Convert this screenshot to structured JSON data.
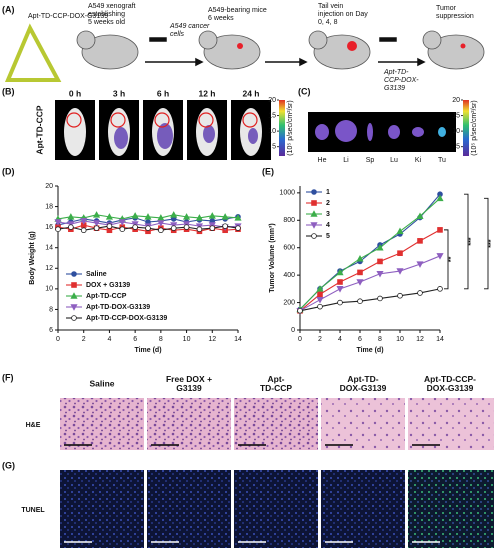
{
  "panels": [
    "(A)",
    "(B)",
    "(C)",
    "(D)",
    "(E)",
    "(F)",
    "(G)"
  ],
  "scheme": {
    "structure_label": "Apt-TD-CCP-DOX-G3139",
    "steps": [
      [
        "A549 xenograft",
        "establishing",
        "5 weeks old"
      ],
      [
        "A549 cancer",
        "cells"
      ],
      [
        "A549-bearing mice",
        "6 weeks"
      ],
      [
        "Tail vein",
        "injection on Day",
        "0, 4, 8"
      ],
      [
        "Apt-TD-",
        "CCP-DOX-",
        "G3139"
      ],
      [
        "Tumor",
        "suppression"
      ]
    ]
  },
  "imaging": {
    "row_label": "Apt-TD-CCP",
    "times": [
      "0 h",
      "3 h",
      "6 h",
      "12 h",
      "24 h"
    ],
    "organs": [
      "He",
      "Li",
      "Sp",
      "Lu",
      "Ki",
      "Tu"
    ],
    "colorbar": {
      "label": "(10⁵ p/sec/cm²/sr)",
      "lim": [
        2,
        20
      ],
      "ticks": [
        20,
        15,
        10,
        5
      ]
    }
  },
  "chart_data": [
    {
      "type": "line",
      "y_label": "Body Weight (g)",
      "x_label": "Time (d)",
      "x": [
        0,
        1,
        2,
        3,
        4,
        5,
        6,
        7,
        8,
        9,
        10,
        11,
        12,
        13,
        14
      ],
      "xlim": [
        0,
        14
      ],
      "xticks": [
        0,
        2,
        4,
        6,
        8,
        10,
        12,
        14
      ],
      "ylim": [
        6,
        20
      ],
      "yticks": [
        6,
        8,
        10,
        12,
        14,
        16,
        18,
        20
      ],
      "legend": "lower left",
      "series": [
        {
          "name": "Saline",
          "color": "#2f4f9f",
          "marker": "circle",
          "values": [
            16.2,
            16.5,
            16.8,
            16.6,
            16.4,
            16.7,
            16.9,
            16.5,
            16.6,
            16.8,
            16.5,
            16.7,
            16.6,
            16.8,
            17.0
          ]
        },
        {
          "name": "DOX + G3139",
          "color": "#e03030",
          "marker": "square",
          "values": [
            16.0,
            15.8,
            16.2,
            15.9,
            15.7,
            16.0,
            15.8,
            15.6,
            15.9,
            15.7,
            15.8,
            15.6,
            15.9,
            15.7,
            15.8
          ]
        },
        {
          "name": "Apt-TD-CCP",
          "color": "#3cae4a",
          "marker": "triangle",
          "values": [
            16.8,
            17.0,
            16.9,
            17.2,
            17.0,
            16.8,
            17.1,
            17.0,
            16.9,
            17.2,
            17.0,
            16.9,
            17.1,
            17.0,
            16.9
          ]
        },
        {
          "name": "Apt-TD-DOX-G3139",
          "color": "#8e5fc0",
          "marker": "triangle-down",
          "values": [
            16.5,
            16.3,
            16.6,
            16.4,
            16.2,
            16.5,
            16.3,
            16.1,
            16.4,
            16.2,
            16.3,
            16.1,
            16.2,
            16.0,
            16.1
          ]
        },
        {
          "name": "Apt-TD-CCP-DOX-G3139",
          "color": "#222222",
          "marker": "open-circle",
          "values": [
            15.8,
            16.0,
            15.7,
            15.9,
            16.1,
            15.8,
            16.0,
            15.9,
            15.7,
            15.9,
            16.0,
            15.8,
            15.9,
            16.1,
            15.9
          ]
        }
      ]
    },
    {
      "type": "line",
      "y_label": "Tumor Volume (mm³)",
      "x_label": "Time (d)",
      "x": [
        0,
        2,
        4,
        6,
        8,
        10,
        12,
        14
      ],
      "xlim": [
        0,
        14
      ],
      "xticks": [
        0,
        2,
        4,
        6,
        8,
        10,
        12,
        14
      ],
      "ylim": [
        0,
        1050
      ],
      "yticks": [
        0,
        200,
        400,
        600,
        800,
        1000
      ],
      "legend": "upper left",
      "annotations": [
        "**",
        "***",
        "***"
      ],
      "series": [
        {
          "name": "1",
          "color": "#2f4f9f",
          "marker": "circle",
          "values": [
            150,
            300,
            430,
            500,
            620,
            700,
            820,
            990
          ]
        },
        {
          "name": "2",
          "color": "#e03030",
          "marker": "square",
          "values": [
            140,
            260,
            350,
            420,
            500,
            560,
            650,
            730
          ]
        },
        {
          "name": "3",
          "color": "#3cae4a",
          "marker": "triangle",
          "values": [
            150,
            300,
            420,
            520,
            600,
            720,
            830,
            960
          ]
        },
        {
          "name": "4",
          "color": "#8e5fc0",
          "marker": "triangle-down",
          "values": [
            140,
            220,
            300,
            350,
            410,
            430,
            480,
            540
          ]
        },
        {
          "name": "5",
          "color": "#222222",
          "marker": "open-circle",
          "values": [
            140,
            170,
            200,
            210,
            230,
            250,
            270,
            300
          ]
        }
      ]
    }
  ],
  "histology": {
    "groups": [
      [
        "Saline"
      ],
      [
        "Free DOX +",
        "G3139"
      ],
      [
        "Apt-",
        "TD-CCP"
      ],
      [
        "Apt-TD-",
        "DOX-G3139"
      ],
      [
        "Apt-TD-CCP-",
        "DOX-G3139"
      ]
    ],
    "rows": [
      "H&E",
      "TUNEL"
    ]
  }
}
